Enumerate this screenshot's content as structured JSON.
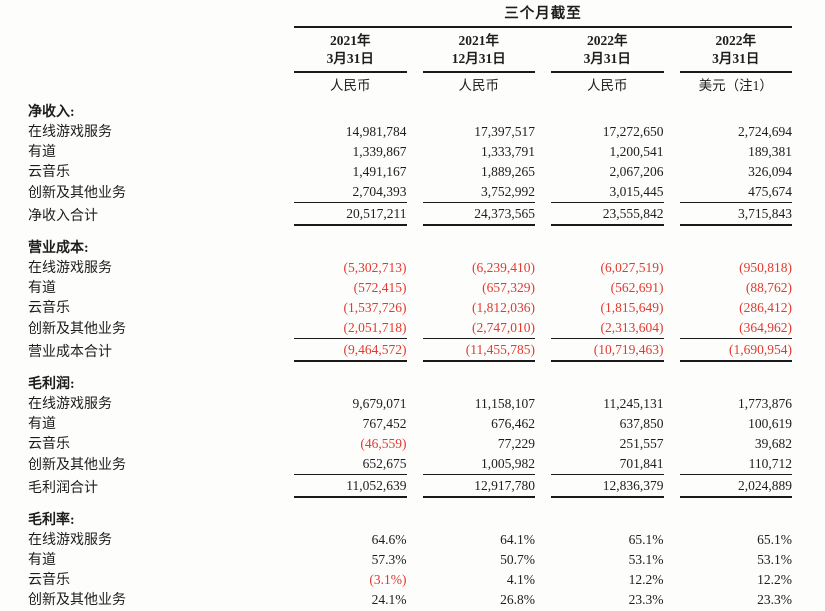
{
  "header": {
    "period_title": "三个月截至",
    "columns": [
      {
        "year": "2021年",
        "date": "3月31日",
        "currency": "人民币"
      },
      {
        "year": "2021年",
        "date": "12月31日",
        "currency": "人民币"
      },
      {
        "year": "2022年",
        "date": "3月31日",
        "currency": "人民币"
      },
      {
        "year": "2022年",
        "date": "3月31日",
        "currency": "美元（注1）"
      }
    ]
  },
  "colors": {
    "negative_value": "#e23a30",
    "text": "#1d1d1d",
    "rule": "#1a1a1a"
  },
  "sections": [
    {
      "title": "净收入:",
      "rows": [
        {
          "label": "在线游戏服务",
          "values": [
            "14,981,784",
            "17,397,517",
            "17,272,650",
            "2,724,694"
          ]
        },
        {
          "label": "有道",
          "values": [
            "1,339,867",
            "1,333,791",
            "1,200,541",
            "189,381"
          ]
        },
        {
          "label": "云音乐",
          "values": [
            "1,491,167",
            "1,889,265",
            "2,067,206",
            "326,094"
          ]
        },
        {
          "label": "创新及其他业务",
          "values": [
            "2,704,393",
            "3,752,992",
            "3,015,445",
            "475,674"
          ],
          "rule_below": true
        }
      ],
      "total": {
        "label": "净收入合计",
        "values": [
          "20,517,211",
          "24,373,565",
          "23,555,842",
          "3,715,843"
        ]
      }
    },
    {
      "title": "营业成本:",
      "rows": [
        {
          "label": "在线游戏服务",
          "values": [
            "(5,302,713)",
            "(6,239,410)",
            "(6,027,519)",
            "(950,818)"
          ]
        },
        {
          "label": "有道",
          "values": [
            "(572,415)",
            "(657,329)",
            "(562,691)",
            "(88,762)"
          ]
        },
        {
          "label": "云音乐",
          "values": [
            "(1,537,726)",
            "(1,812,036)",
            "(1,815,649)",
            "(286,412)"
          ]
        },
        {
          "label": "创新及其他业务",
          "values": [
            "(2,051,718)",
            "(2,747,010)",
            "(2,313,604)",
            "(364,962)"
          ],
          "rule_below": true
        }
      ],
      "total": {
        "label": "营业成本合计",
        "values": [
          "(9,464,572)",
          "(11,455,785)",
          "(10,719,463)",
          "(1,690,954)"
        ]
      }
    },
    {
      "title": "毛利润:",
      "rows": [
        {
          "label": "在线游戏服务",
          "values": [
            "9,679,071",
            "11,158,107",
            "11,245,131",
            "1,773,876"
          ]
        },
        {
          "label": "有道",
          "values": [
            "767,452",
            "676,462",
            "637,850",
            "100,619"
          ]
        },
        {
          "label": "云音乐",
          "values": [
            "(46,559)",
            "77,229",
            "251,557",
            "39,682"
          ]
        },
        {
          "label": "创新及其他业务",
          "values": [
            "652,675",
            "1,005,982",
            "701,841",
            "110,712"
          ],
          "rule_below": true
        }
      ],
      "total": {
        "label": "毛利润合计",
        "values": [
          "11,052,639",
          "12,917,780",
          "12,836,379",
          "2,024,889"
        ]
      }
    },
    {
      "title": "毛利率:",
      "rows": [
        {
          "label": "在线游戏服务",
          "values": [
            "64.6%",
            "64.1%",
            "65.1%",
            "65.1%"
          ]
        },
        {
          "label": "有道",
          "values": [
            "57.3%",
            "50.7%",
            "53.1%",
            "53.1%"
          ]
        },
        {
          "label": "云音乐",
          "values": [
            "(3.1%)",
            "4.1%",
            "12.2%",
            "12.2%"
          ]
        },
        {
          "label": "创新及其他业务",
          "values": [
            "24.1%",
            "26.8%",
            "23.3%",
            "23.3%"
          ]
        }
      ],
      "total": null
    }
  ]
}
